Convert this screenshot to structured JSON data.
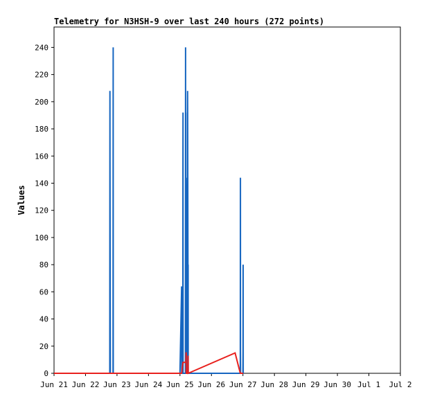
{
  "chart_data": {
    "type": "line",
    "title": "Telemetry for N3HSH-9 over last 240 hours (272 points)",
    "xlabel": "",
    "ylabel": "Values",
    "ylim": [
      0,
      255
    ],
    "xlim": [
      "2025-06-21",
      "2025-07-02"
    ],
    "yticks": [
      0,
      20,
      40,
      60,
      80,
      100,
      120,
      140,
      160,
      180,
      200,
      220,
      240
    ],
    "xticks": [
      {
        "date": "2025-06-21",
        "label": "Jun 21"
      },
      {
        "date": "2025-06-22",
        "label": "Jun 22"
      },
      {
        "date": "2025-06-23",
        "label": "Jun 23"
      },
      {
        "date": "2025-06-24",
        "label": "Jun 24"
      },
      {
        "date": "2025-06-25",
        "label": "Jun 25"
      },
      {
        "date": "2025-06-26",
        "label": "Jun 26"
      },
      {
        "date": "2025-06-27",
        "label": "Jun 27"
      },
      {
        "date": "2025-06-28",
        "label": "Jun 28"
      },
      {
        "date": "2025-06-29",
        "label": "Jun 29"
      },
      {
        "date": "2025-06-30",
        "label": "Jun 30"
      },
      {
        "date": "2025-07-01",
        "label": "Jul 1"
      },
      {
        "date": "2025-07-02",
        "label": "Jul 2"
      }
    ],
    "grid": false,
    "legend": "none",
    "series": [
      {
        "color": "#1565c0",
        "points": [
          [
            "2025-06-21 00:00",
            0
          ],
          [
            "2025-06-22 18:30",
            0
          ],
          [
            "2025-06-22 18:35",
            208
          ],
          [
            "2025-06-22 18:40",
            156
          ],
          [
            "2025-06-22 18:50",
            53
          ],
          [
            "2025-06-22 18:55",
            0
          ],
          [
            "2025-06-22 21:00",
            0
          ],
          [
            "2025-06-22 21:05",
            240
          ],
          [
            "2025-06-22 21:10",
            0
          ],
          [
            "2025-06-25 00:00",
            0
          ],
          [
            "2025-06-25 01:15",
            64
          ],
          [
            "2025-06-25 01:20",
            0
          ],
          [
            "2025-06-25 02:10",
            0
          ],
          [
            "2025-06-25 02:15",
            160
          ],
          [
            "2025-06-25 02:18",
            192
          ],
          [
            "2025-06-25 02:21",
            0
          ],
          [
            "2025-06-25 04:10",
            0
          ],
          [
            "2025-06-25 04:15",
            240
          ],
          [
            "2025-06-25 04:20",
            0
          ],
          [
            "2025-06-25 04:22",
            192
          ],
          [
            "2025-06-25 04:27",
            0
          ],
          [
            "2025-06-25 04:33",
            0
          ],
          [
            "2025-06-25 04:38",
            144
          ],
          [
            "2025-06-25 04:44",
            128
          ],
          [
            "2025-06-25 04:48",
            0
          ],
          [
            "2025-06-25 05:42",
            0
          ],
          [
            "2025-06-25 05:45",
            192
          ],
          [
            "2025-06-25 05:48",
            208
          ],
          [
            "2025-06-25 05:51",
            195
          ],
          [
            "2025-06-25 05:54",
            170
          ],
          [
            "2025-06-25 05:57",
            143
          ],
          [
            "2025-06-25 06:00",
            117
          ],
          [
            "2025-06-25 06:03",
            91
          ],
          [
            "2025-06-25 06:06",
            65
          ],
          [
            "2025-06-25 06:09",
            39
          ],
          [
            "2025-06-25 06:12",
            80
          ],
          [
            "2025-06-25 06:15",
            0
          ],
          [
            "2025-06-26 22:00",
            0
          ],
          [
            "2025-06-26 22:03",
            72
          ],
          [
            "2025-06-26 22:05",
            144
          ],
          [
            "2025-06-26 22:08",
            16
          ],
          [
            "2025-06-26 22:11",
            0
          ],
          [
            "2025-06-27 00:00",
            0
          ],
          [
            "2025-06-27 00:05",
            16
          ],
          [
            "2025-06-27 00:08",
            80
          ],
          [
            "2025-06-27 00:11",
            0
          ]
        ]
      },
      {
        "color": "#e8201d",
        "points": [
          [
            "2025-06-21 00:00",
            0
          ],
          [
            "2025-06-25 01:15",
            0
          ],
          [
            "2025-06-25 02:15",
            8
          ],
          [
            "2025-06-25 04:33",
            8
          ],
          [
            "2025-06-25 04:38",
            15
          ],
          [
            "2025-06-25 04:44",
            15
          ],
          [
            "2025-06-25 04:48",
            0
          ],
          [
            "2025-06-25 05:55",
            0
          ],
          [
            "2025-06-25 06:10",
            13
          ],
          [
            "2025-06-25 06:15",
            0
          ],
          [
            "2025-06-26 18:00",
            15
          ],
          [
            "2025-06-26 22:00",
            0
          ],
          [
            "2025-06-27 00:11",
            0
          ]
        ]
      }
    ]
  }
}
